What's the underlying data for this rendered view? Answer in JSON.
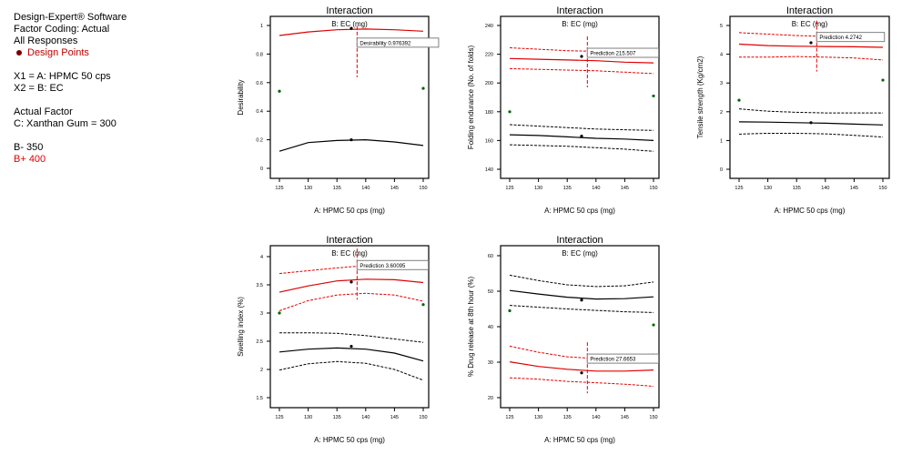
{
  "legend": {
    "software": "Design-Expert® Software",
    "coding": "Factor Coding: Actual",
    "responses": "All Responses",
    "design_points": "Design Points",
    "x1": "X1 = A: HPMC 50 cps",
    "x2": "X2 = B: EC",
    "actual_factor_title": "Actual Factor",
    "actual_factor": "C: Xanthan Gum = 300",
    "b_minus": "B- 350",
    "b_plus": "B+ 400"
  },
  "colors": {
    "b_plus_line": "#e00000",
    "b_minus_line": "#000000",
    "design_point": "#006400",
    "tooltip_border": "#808080"
  },
  "chart_data": [
    {
      "type": "line",
      "title": "Interaction",
      "subtitle": "B: EC (mg)",
      "xlabel": "A: HPMC 50 cps (mg)",
      "ylabel": "Desirability",
      "xlim": [
        125,
        150
      ],
      "ylim": [
        0,
        1
      ],
      "xticks": [
        "125",
        "130",
        "135",
        "140",
        "145",
        "150"
      ],
      "yticks": [
        "0",
        "0.2",
        "0.4",
        "0.6",
        "0.8",
        "1"
      ],
      "x": [
        125,
        130,
        135,
        140,
        145,
        150
      ],
      "series": [
        {
          "name": "B+ 400",
          "style": "solid",
          "color": "red",
          "values": [
            0.93,
            0.955,
            0.97,
            0.975,
            0.97,
            0.96
          ]
        },
        {
          "name": "B- 350",
          "style": "solid",
          "color": "black",
          "values": [
            0.12,
            0.18,
            0.195,
            0.2,
            0.185,
            0.16
          ]
        }
      ],
      "points": [
        [
          125,
          0.54
        ],
        [
          137.5,
          0.98
        ],
        [
          137.5,
          0.2
        ],
        [
          150,
          0.56
        ]
      ],
      "crosshair_x": 138.5,
      "tooltip": {
        "label": "Desirability",
        "value": "0.976392",
        "at": [
          138.5,
          0.88
        ]
      }
    },
    {
      "type": "line",
      "title": "Interaction",
      "subtitle": "B: EC (mg)",
      "xlabel": "A: HPMC 50 cps (mg)",
      "ylabel": "Folding endurance (No. of folds)",
      "xlim": [
        125,
        150
      ],
      "ylim": [
        140,
        240
      ],
      "xticks": [
        "125",
        "130",
        "135",
        "140",
        "145",
        "150"
      ],
      "yticks": [
        "140",
        "160",
        "180",
        "200",
        "220",
        "240"
      ],
      "x": [
        125,
        130,
        135,
        140,
        145,
        150
      ],
      "series": [
        {
          "name": "B+ 400 upper",
          "style": "dashed",
          "color": "red",
          "values": [
            224.5,
            223.5,
            222.5,
            222,
            221.5,
            221
          ]
        },
        {
          "name": "B+ 400",
          "style": "solid",
          "color": "red",
          "values": [
            217,
            216.5,
            216,
            215.5,
            214.5,
            214
          ]
        },
        {
          "name": "B+ 400 lower",
          "style": "dashed",
          "color": "red",
          "values": [
            210,
            209.5,
            209,
            208.5,
            207.5,
            206.5
          ]
        },
        {
          "name": "B- 350 upper",
          "style": "dashed",
          "color": "black",
          "values": [
            171,
            170,
            169,
            168,
            167.5,
            167
          ]
        },
        {
          "name": "B- 350",
          "style": "solid",
          "color": "black",
          "values": [
            164,
            163.5,
            162.5,
            161.5,
            161,
            160
          ]
        },
        {
          "name": "B- 350 lower",
          "style": "dashed",
          "color": "black",
          "values": [
            157,
            156.5,
            156,
            155,
            154,
            152.5
          ]
        }
      ],
      "points": [
        [
          125,
          180
        ],
        [
          137.5,
          218.5
        ],
        [
          137.5,
          163
        ],
        [
          150,
          191
        ]
      ],
      "crosshair_x": 138.5,
      "tooltip": {
        "label": "Prediction",
        "value": "215.507",
        "at": [
          138.5,
          221
        ]
      }
    },
    {
      "type": "line",
      "title": "Interaction",
      "subtitle": "B: EC (mg)",
      "xlabel": "A: HPMC 50 cps (mg)",
      "ylabel": "Tensile strength (Kg/cm2)",
      "xlim": [
        125,
        150
      ],
      "ylim": [
        0,
        5
      ],
      "xticks": [
        "125",
        "130",
        "135",
        "140",
        "145",
        "150"
      ],
      "yticks": [
        "0",
        "1",
        "2",
        "3",
        "4",
        "5"
      ],
      "x": [
        125,
        130,
        135,
        140,
        145,
        150
      ],
      "series": [
        {
          "name": "B+ 400 upper",
          "style": "dashed",
          "color": "red",
          "values": [
            4.75,
            4.7,
            4.65,
            4.62,
            4.62,
            4.65
          ]
        },
        {
          "name": "B+ 400",
          "style": "solid",
          "color": "red",
          "values": [
            4.35,
            4.3,
            4.28,
            4.27,
            4.26,
            4.24
          ]
        },
        {
          "name": "B+ 400 lower",
          "style": "dashed",
          "color": "red",
          "values": [
            3.9,
            3.9,
            3.92,
            3.9,
            3.87,
            3.8
          ]
        },
        {
          "name": "B- 350 upper",
          "style": "dashed",
          "color": "black",
          "values": [
            2.1,
            2.02,
            1.98,
            1.96,
            1.96,
            1.96
          ]
        },
        {
          "name": "B- 350",
          "style": "solid",
          "color": "black",
          "values": [
            1.65,
            1.64,
            1.62,
            1.6,
            1.57,
            1.54
          ]
        },
        {
          "name": "B- 350 lower",
          "style": "dashed",
          "color": "black",
          "values": [
            1.22,
            1.25,
            1.25,
            1.23,
            1.18,
            1.12
          ]
        }
      ],
      "points": [
        [
          125,
          2.4
        ],
        [
          137.5,
          4.4
        ],
        [
          137.5,
          1.62
        ],
        [
          150,
          3.1
        ]
      ],
      "crosshair_x": 138.5,
      "tooltip": {
        "label": "Prediction",
        "value": "4.2742",
        "at": [
          138.5,
          4.6
        ]
      }
    },
    {
      "type": "line",
      "title": "Interaction",
      "subtitle": "B: EC (mg)",
      "xlabel": "A: HPMC 50 cps (mg)",
      "ylabel": "Swelling index (%)",
      "xlim": [
        125,
        150
      ],
      "ylim": [
        1.5,
        4
      ],
      "xticks": [
        "125",
        "130",
        "135",
        "140",
        "145",
        "150"
      ],
      "yticks": [
        "1.5",
        "2",
        "2.5",
        "3",
        "3.5",
        "4"
      ],
      "x": [
        125,
        130,
        135,
        140,
        145,
        150
      ],
      "series": [
        {
          "name": "B+ 400 upper",
          "style": "dashed",
          "color": "red",
          "values": [
            3.7,
            3.75,
            3.8,
            3.84,
            3.86,
            3.86
          ]
        },
        {
          "name": "B+ 400",
          "style": "solid",
          "color": "red",
          "values": [
            3.37,
            3.48,
            3.57,
            3.6,
            3.59,
            3.54
          ]
        },
        {
          "name": "B+ 400 lower",
          "style": "dashed",
          "color": "red",
          "values": [
            3.04,
            3.22,
            3.32,
            3.35,
            3.32,
            3.21
          ]
        },
        {
          "name": "B- 350 upper",
          "style": "dashed",
          "color": "black",
          "values": [
            2.65,
            2.65,
            2.64,
            2.6,
            2.54,
            2.48
          ]
        },
        {
          "name": "B- 350",
          "style": "solid",
          "color": "black",
          "values": [
            2.31,
            2.36,
            2.38,
            2.36,
            2.29,
            2.15
          ]
        },
        {
          "name": "B- 350 lower",
          "style": "dashed",
          "color": "black",
          "values": [
            1.99,
            2.1,
            2.14,
            2.11,
            2.0,
            1.81
          ]
        }
      ],
      "points": [
        [
          125,
          3.0
        ],
        [
          137.5,
          3.55
        ],
        [
          137.5,
          2.41
        ],
        [
          150,
          3.15
        ]
      ],
      "crosshair_x": 138.5,
      "tooltip": {
        "label": "Prediction",
        "value": "3.60095",
        "at": [
          138.5,
          3.85
        ]
      }
    },
    {
      "type": "line",
      "title": "Interaction",
      "subtitle": "B: EC (mg)",
      "xlabel": "A: HPMC 50 cps (mg)",
      "ylabel": "% Drug release at 8th hour (%)",
      "xlim": [
        125,
        150
      ],
      "ylim": [
        20,
        60
      ],
      "xticks": [
        "125",
        "130",
        "135",
        "140",
        "145",
        "150"
      ],
      "yticks": [
        "20",
        "30",
        "40",
        "50",
        "60"
      ],
      "x": [
        125,
        130,
        135,
        140,
        145,
        150
      ],
      "series": [
        {
          "name": "B- 350 upper",
          "style": "dashed",
          "color": "black",
          "values": [
            54.5,
            53,
            51.8,
            51.3,
            51.5,
            52.6
          ]
        },
        {
          "name": "B- 350",
          "style": "solid",
          "color": "black",
          "values": [
            50.2,
            49.2,
            48.3,
            47.8,
            47.9,
            48.4
          ]
        },
        {
          "name": "B- 350 lower",
          "style": "dashed",
          "color": "black",
          "values": [
            46,
            45.5,
            45,
            44.6,
            44.2,
            44
          ]
        },
        {
          "name": "B+ 400 upper",
          "style": "dashed",
          "color": "red",
          "values": [
            34.5,
            32.8,
            31.5,
            31,
            31.2,
            32.3
          ]
        },
        {
          "name": "B+ 400",
          "style": "solid",
          "color": "red",
          "values": [
            30.1,
            28.8,
            28,
            27.5,
            27.5,
            27.8
          ]
        },
        {
          "name": "B+ 400 lower",
          "style": "dashed",
          "color": "red",
          "values": [
            25.6,
            25.2,
            24.6,
            24.2,
            23.8,
            23.2
          ]
        }
      ],
      "points": [
        [
          125,
          44.5
        ],
        [
          137.5,
          47.5
        ],
        [
          137.5,
          27
        ],
        [
          150,
          40.5
        ]
      ],
      "crosshair_x": 138.5,
      "tooltip": {
        "label": "Prediction",
        "value": "27.6653",
        "at": [
          138.5,
          31
        ]
      }
    }
  ]
}
